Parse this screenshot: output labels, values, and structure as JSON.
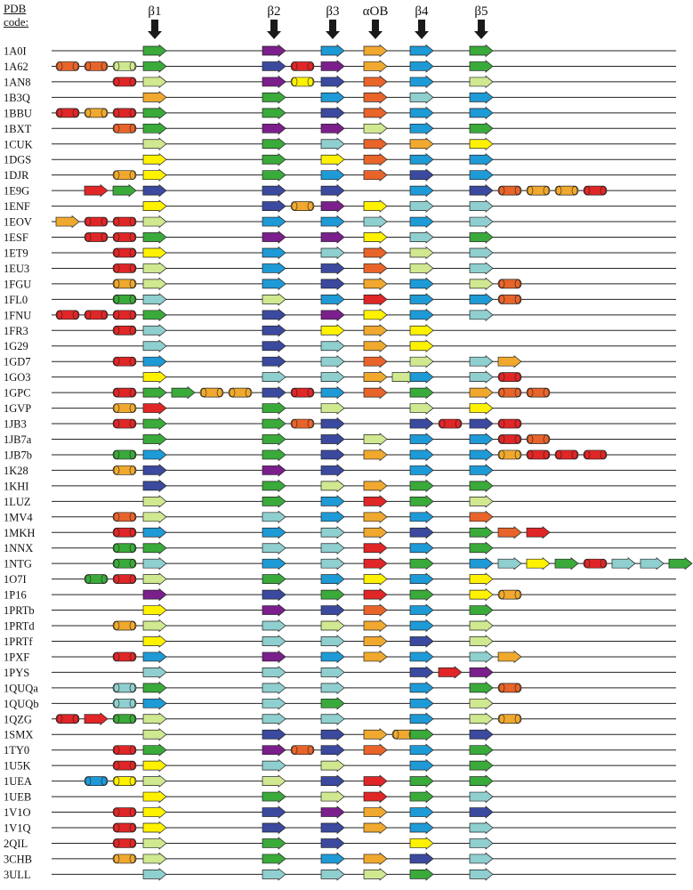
{
  "header": {
    "line1": "PDB",
    "line2": "code:"
  },
  "columns": [
    {
      "id": "b1",
      "label": "β1"
    },
    {
      "id": "b2",
      "label": "β2"
    },
    {
      "id": "b3",
      "label": "β3"
    },
    {
      "id": "aOB",
      "label": "αOB"
    },
    {
      "id": "b4",
      "label": "β4"
    },
    {
      "id": "b5",
      "label": "β5"
    }
  ],
  "colors": {
    "G": "#3aaa3a",
    "P": "#7b1f8c",
    "B": "#1e9ad6",
    "N": "#3b4a9e",
    "O": "#f0a92e",
    "R": "#e02626",
    "Y": "#fff200",
    "T": "#8fcfcf",
    "L": "#d0e890",
    "E": "#e8642a"
  },
  "shape_legend": {
    "s": "beta-strand-arrow",
    "h": "alpha-helix-cylinder"
  },
  "rows": [
    {
      "code": "1A0I",
      "pre": [],
      "b1": "G",
      "b2": "P",
      "b3": "B",
      "aOB": "O",
      "b4": "B",
      "b5": "G",
      "post": []
    },
    {
      "code": "1A62",
      "pre": [
        "hE",
        "hE",
        "hL"
      ],
      "b1": "G",
      "b2": "N",
      "b2x": [
        "hR"
      ],
      "b3": "P",
      "aOB": "O",
      "b4": "B",
      "b5": "G",
      "post": []
    },
    {
      "code": "1AN8",
      "pre": [
        "hR"
      ],
      "b1": "L",
      "b2": "P",
      "b2x": [
        "hY"
      ],
      "b3": "N",
      "aOB": "E",
      "b4": "B",
      "b5": "L",
      "post": []
    },
    {
      "code": "1B3Q",
      "pre": [],
      "b1": "O",
      "b2": "G",
      "b3": "B",
      "aOB": "E",
      "b4": "T",
      "b5": "B",
      "post": []
    },
    {
      "code": "1BBU",
      "pre": [
        "hR",
        "hO",
        "hR"
      ],
      "b1": "G",
      "b2": "G",
      "b3": "N",
      "aOB": "E",
      "b4": "B",
      "b5": "B",
      "post": []
    },
    {
      "code": "1BXT",
      "pre": [
        "hE"
      ],
      "b1": "G",
      "b2": "P",
      "b3": "P",
      "aOB": "L",
      "b4": "B",
      "b5": "G",
      "post": []
    },
    {
      "code": "1CUK",
      "pre": [],
      "b1": "L",
      "b2": "G",
      "b3": "T",
      "aOB": "E",
      "b4": "O",
      "b5": "Y",
      "post": []
    },
    {
      "code": "1DGS",
      "pre": [],
      "b1": "Y",
      "b2": "G",
      "b3": "Y",
      "aOB": "E",
      "b4": "B",
      "b5": "B",
      "post": []
    },
    {
      "code": "1DJR",
      "pre": [
        "hO"
      ],
      "b1": "Y",
      "b2": "G",
      "b3": "B",
      "aOB": "E",
      "b4": "N",
      "b5": "B",
      "post": []
    },
    {
      "code": "1E9G",
      "pre": [
        "sR",
        "sG"
      ],
      "b1": "N",
      "b2": "N",
      "b3": "N",
      "aOB": "",
      "b4": "B",
      "b5": "N",
      "post": [
        "hE",
        "hO",
        "hO",
        "hR"
      ]
    },
    {
      "code": "1ENF",
      "pre": [],
      "b1": "Y",
      "b2": "N",
      "b2x": [
        "hO"
      ],
      "b3": "P",
      "aOB": "Y",
      "b4": "T",
      "b5": "T",
      "post": []
    },
    {
      "code": "1EOV",
      "pre": [
        "sO",
        "hR",
        "hR"
      ],
      "b1": "L",
      "b2": "B",
      "b3": "B",
      "aOB": "T",
      "b4": "B",
      "b5": "T",
      "post": []
    },
    {
      "code": "1ESF",
      "pre": [
        "hR",
        "hR"
      ],
      "b1": "G",
      "b2": "P",
      "b3": "P",
      "aOB": "Y",
      "b4": "T",
      "b5": "G",
      "post": []
    },
    {
      "code": "1ET9",
      "pre": [
        "hR"
      ],
      "b1": "Y",
      "b2": "B",
      "b3": "T",
      "aOB": "E",
      "b4": "L",
      "b5": "T",
      "post": []
    },
    {
      "code": "1EU3",
      "pre": [
        "hR"
      ],
      "b1": "L",
      "b2": "B",
      "b3": "N",
      "aOB": "E",
      "b4": "L",
      "b5": "T",
      "post": []
    },
    {
      "code": "1FGU",
      "pre": [
        "hO"
      ],
      "b1": "L",
      "b2": "B",
      "b3": "N",
      "aOB": "O",
      "b4": "B",
      "b5": "L",
      "post": [
        "hE"
      ]
    },
    {
      "code": "1FL0",
      "pre": [
        "hG"
      ],
      "b1": "T",
      "b2": "L",
      "b3": "B",
      "aOB": "R",
      "b4": "B",
      "b5": "B",
      "post": [
        "hE"
      ]
    },
    {
      "code": "1FNU",
      "pre": [
        "hR",
        "hR",
        "hR"
      ],
      "b1": "G",
      "b2": "N",
      "b3": "P",
      "aOB": "Y",
      "b4": "B",
      "b5": "T",
      "post": []
    },
    {
      "code": "1FR3",
      "pre": [
        "hR"
      ],
      "b1": "T",
      "b2": "N",
      "b3": "Y",
      "aOB": "O",
      "b4": "Y",
      "b5": "",
      "post": []
    },
    {
      "code": "1G29",
      "pre": [],
      "b1": "T",
      "b2": "N",
      "b3": "T",
      "aOB": "O",
      "b4": "Y",
      "b5": "",
      "post": []
    },
    {
      "code": "1GD7",
      "pre": [
        "hR"
      ],
      "b1": "B",
      "b2": "N",
      "b3": "T",
      "aOB": "E",
      "b4": "L",
      "b5": "T",
      "post": [
        "sO"
      ]
    },
    {
      "code": "1GO3",
      "pre": [],
      "b1": "Y",
      "b2": "T",
      "b3": "T",
      "aOB": "sO",
      "aOBx": [
        "sL"
      ],
      "b4": "B",
      "b5": "T",
      "post": [
        "hR"
      ]
    },
    {
      "code": "1GPC",
      "pre": [
        "hR"
      ],
      "b1": "G",
      "b1x": [
        "sG",
        "hO",
        "hO"
      ],
      "b2": "N",
      "b2x": [
        "hR"
      ],
      "b3": "B",
      "aOB": "E",
      "b4": "G",
      "b5": "O",
      "post": [
        "hE",
        "hE"
      ]
    },
    {
      "code": "1GVP",
      "pre": [
        "hO"
      ],
      "b1": "R",
      "b2": "G",
      "b3": "L",
      "aOB": "",
      "b4": "L",
      "b5": "Y",
      "post": []
    },
    {
      "code": "1JB3",
      "pre": [
        "hR"
      ],
      "b1": "G",
      "b2": "G",
      "b2x": [
        "hE"
      ],
      "b3": "N",
      "aOB": "",
      "b4": "N",
      "b4x": [
        "hR"
      ],
      "b5": "N",
      "post": [
        "hR"
      ]
    },
    {
      "code": "1JB7a",
      "pre": [],
      "b1": "G",
      "b2": "G",
      "b3": "N",
      "aOB": "L",
      "b4": "B",
      "b5": "B",
      "post": [
        "hR",
        "hE"
      ]
    },
    {
      "code": "1JB7b",
      "pre": [
        "hG"
      ],
      "b1": "B",
      "b2": "G",
      "b3": "N",
      "aOB": "O",
      "b4": "B",
      "b5": "B",
      "post": [
        "hO",
        "hR",
        "hR",
        "hR"
      ]
    },
    {
      "code": "1K28",
      "pre": [
        "hO"
      ],
      "b1": "N",
      "b2": "P",
      "b3": "N",
      "aOB": "",
      "b4": "B",
      "b5": "B",
      "post": []
    },
    {
      "code": "1KHI",
      "pre": [],
      "b1": "N",
      "b2": "G",
      "b3": "L",
      "aOB": "O",
      "b4": "G",
      "b5": "G",
      "post": []
    },
    {
      "code": "1LUZ",
      "pre": [],
      "b1": "L",
      "b2": "G",
      "b3": "B",
      "aOB": "R",
      "b4": "G",
      "b5": "L",
      "post": []
    },
    {
      "code": "1MV4",
      "pre": [
        "hE"
      ],
      "b1": "L",
      "b2": "T",
      "b3": "B",
      "aOB": "O",
      "b4": "B",
      "b5": "E",
      "post": []
    },
    {
      "code": "1MKH",
      "pre": [
        "hR"
      ],
      "b1": "B",
      "b2": "B",
      "b3": "T",
      "aOB": "O",
      "b4": "N",
      "b5": "G",
      "post": [
        "sE",
        "sR"
      ]
    },
    {
      "code": "1NNX",
      "pre": [
        "hG"
      ],
      "b1": "G",
      "b2": "T",
      "b3": "T",
      "aOB": "R",
      "b4": "B",
      "b5": "G",
      "post": []
    },
    {
      "code": "1NTG",
      "pre": [
        "hG"
      ],
      "b1": "T",
      "b2": "B",
      "b3": "T",
      "aOB": "R",
      "b4": "G",
      "b5": "B",
      "post": [
        "sT",
        "sY",
        "sG",
        "hR",
        "sT",
        "sT",
        "sG"
      ]
    },
    {
      "code": "1O7I",
      "pre": [
        "hG",
        "hR"
      ],
      "b1": "L",
      "b2": "G",
      "b3": "B",
      "aOB": "Y",
      "b4": "B",
      "b5": "Y",
      "post": []
    },
    {
      "code": "1P16",
      "pre": [],
      "b1": "P",
      "b2": "N",
      "b3": "G",
      "aOB": "R",
      "b4": "G",
      "b5": "Y",
      "post": [
        "hO"
      ]
    },
    {
      "code": "1PRTb",
      "pre": [],
      "b1": "Y",
      "b2": "P",
      "b3": "N",
      "aOB": "E",
      "b4": "B",
      "b5": "G",
      "post": []
    },
    {
      "code": "1PRTd",
      "pre": [
        "hO"
      ],
      "b1": "L",
      "b2": "T",
      "b3": "L",
      "aOB": "O",
      "b4": "B",
      "b5": "L",
      "post": []
    },
    {
      "code": "1PRTf",
      "pre": [],
      "b1": "Y",
      "b2": "T",
      "b3": "T",
      "aOB": "O",
      "b4": "N",
      "b5": "L",
      "post": []
    },
    {
      "code": "1PXF",
      "pre": [
        "hR"
      ],
      "b1": "B",
      "b2": "P",
      "b3": "B",
      "aOB": "O",
      "b4": "B",
      "b5": "T",
      "post": [
        "sO"
      ]
    },
    {
      "code": "1PYS",
      "pre": [],
      "b1": "T",
      "b2": "T",
      "b3": "T",
      "aOB": "",
      "b4": "N",
      "b4x": [
        "sR"
      ],
      "b5": "P",
      "post": []
    },
    {
      "code": "1QUQa",
      "pre": [
        "hT"
      ],
      "b1": "G",
      "b2": "T",
      "b3": "T",
      "aOB": "",
      "b4": "B",
      "b5": "G",
      "post": [
        "hE"
      ]
    },
    {
      "code": "1QUQb",
      "pre": [
        "hT"
      ],
      "b1": "B",
      "b2": "T",
      "b3": "G",
      "aOB": "",
      "b4": "B",
      "b5": "L",
      "post": []
    },
    {
      "code": "1QZG",
      "pre": [
        "hR",
        "sR",
        "hG"
      ],
      "b1": "L",
      "b2": "T",
      "b3": "T",
      "aOB": "",
      "b4": "B",
      "b5": "L",
      "post": [
        "hO"
      ]
    },
    {
      "code": "1SMX",
      "pre": [],
      "b1": "L",
      "b2": "N",
      "b3": "N",
      "aOB": "O",
      "aOBx": [
        "hO"
      ],
      "b4": "G",
      "b5": "N",
      "post": []
    },
    {
      "code": "1TY0",
      "pre": [
        "hR"
      ],
      "b1": "G",
      "b2": "P",
      "b2x": [
        "hE"
      ],
      "b3": "N",
      "aOB": "E",
      "b4": "B",
      "b5": "G",
      "post": []
    },
    {
      "code": "1U5K",
      "pre": [
        "hR"
      ],
      "b1": "Y",
      "b2": "T",
      "b3": "L",
      "aOB": "",
      "b4": "B",
      "b5": "G",
      "post": []
    },
    {
      "code": "1UEA",
      "pre": [
        "hB",
        "hY"
      ],
      "b1": "L",
      "b2": "L",
      "b3": "N",
      "aOB": "R",
      "b4": "G",
      "b5": "G",
      "post": []
    },
    {
      "code": "1UEB",
      "pre": [],
      "b1": "Y",
      "b2": "G",
      "b3": "L",
      "aOB": "R",
      "b4": "G",
      "b5": "T",
      "post": []
    },
    {
      "code": "1V1O",
      "pre": [
        "hR"
      ],
      "b1": "Y",
      "b2": "N",
      "b3": "P",
      "aOB": "O",
      "b4": "B",
      "b5": "N",
      "post": []
    },
    {
      "code": "1V1Q",
      "pre": [
        "hR"
      ],
      "b1": "Y",
      "b2": "N",
      "b3": "N",
      "aOB": "O",
      "b4": "B",
      "b5": "T",
      "post": []
    },
    {
      "code": "2QIL",
      "pre": [
        "hR"
      ],
      "b1": "L",
      "b2": "G",
      "b3": "N",
      "aOB": "",
      "b4": "Y",
      "b5": "T",
      "post": []
    },
    {
      "code": "3CHB",
      "pre": [
        "hO"
      ],
      "b1": "L",
      "b2": "G",
      "b3": "B",
      "aOB": "O",
      "b4": "N",
      "b5": "T",
      "post": []
    },
    {
      "code": "3ULL",
      "pre": [],
      "b1": "T",
      "b2": "T",
      "b3": "T",
      "aOB": "L",
      "b4": "G",
      "b5": "T",
      "post": []
    }
  ]
}
